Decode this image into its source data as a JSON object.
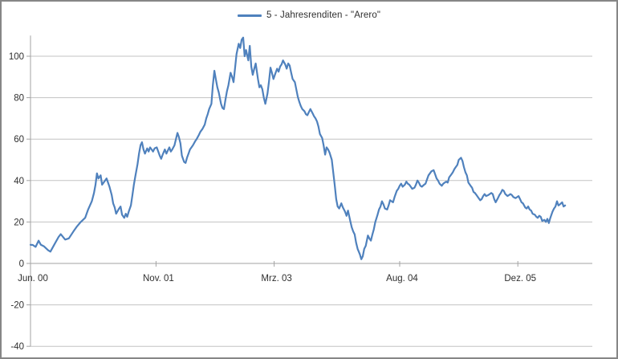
{
  "legend": {
    "label": "5 - Jahresrenditen - \"Arero\""
  },
  "colors": {
    "series_blue": "#4F81BD",
    "gridline": "#c3c3c3",
    "axis_line": "#a3a3a3",
    "tick_text": "#2f2f2f",
    "window_border": "#868686",
    "background": "#ffffff"
  },
  "chart_data": {
    "type": "line",
    "title": "",
    "xlabel": "",
    "ylabel": "",
    "grid": true,
    "legend_position": "top-center",
    "ylim": [
      -40,
      110
    ],
    "y_ticks": [
      100,
      80,
      60,
      40,
      20,
      0,
      -20,
      -40
    ],
    "x_ticks": [
      {
        "label": "Jun. 00",
        "month": 0
      },
      {
        "label": "Nov. 01",
        "month": 17
      },
      {
        "label": "Mrz. 03",
        "month": 33
      },
      {
        "label": "Aug. 04",
        "month": 50
      },
      {
        "label": "Dez. 05",
        "month": 66
      }
    ],
    "x_unit": "months since Jun 2000",
    "series": [
      {
        "name": "5 - Jahresrenditen - \"Arero\"",
        "color": "#4F81BD",
        "points": [
          [
            0,
            9
          ],
          [
            0.3,
            8.9
          ],
          [
            0.7,
            8
          ],
          [
            1.1,
            11
          ],
          [
            1.4,
            9
          ],
          [
            1.8,
            8.3
          ],
          [
            2.4,
            6.3
          ],
          [
            2.7,
            5.7
          ],
          [
            3.3,
            9.6
          ],
          [
            3.8,
            12.8
          ],
          [
            4.1,
            14.1
          ],
          [
            4.7,
            11.5
          ],
          [
            5.2,
            12.1
          ],
          [
            5.8,
            15.4
          ],
          [
            6.3,
            17.9
          ],
          [
            6.8,
            20
          ],
          [
            7.4,
            22
          ],
          [
            7.8,
            26
          ],
          [
            8.3,
            30
          ],
          [
            8.6,
            34
          ],
          [
            8.8,
            38
          ],
          [
            9.0,
            43.5
          ],
          [
            9.2,
            41
          ],
          [
            9.5,
            42.5
          ],
          [
            9.7,
            38
          ],
          [
            10.0,
            39.5
          ],
          [
            10.3,
            41
          ],
          [
            10.7,
            37
          ],
          [
            11.0,
            33
          ],
          [
            11.2,
            29
          ],
          [
            11.4,
            27
          ],
          [
            11.6,
            24
          ],
          [
            12.0,
            26.5
          ],
          [
            12.2,
            27.5
          ],
          [
            12.4,
            23.5
          ],
          [
            12.7,
            22
          ],
          [
            12.9,
            24
          ],
          [
            13.1,
            22.5
          ],
          [
            13.3,
            25
          ],
          [
            13.6,
            28
          ],
          [
            13.8,
            33
          ],
          [
            14.0,
            38
          ],
          [
            14.2,
            42
          ],
          [
            14.5,
            48
          ],
          [
            14.7,
            53
          ],
          [
            14.9,
            57
          ],
          [
            15.1,
            58.5
          ],
          [
            15.3,
            55
          ],
          [
            15.5,
            53
          ],
          [
            15.8,
            55.5
          ],
          [
            16.0,
            54
          ],
          [
            16.2,
            56
          ],
          [
            16.4,
            55
          ],
          [
            16.6,
            54
          ],
          [
            16.8,
            55.5
          ],
          [
            17.1,
            56
          ],
          [
            17.3,
            54
          ],
          [
            17.5,
            52
          ],
          [
            17.7,
            50.5
          ],
          [
            17.9,
            52.5
          ],
          [
            18.2,
            55
          ],
          [
            18.4,
            53
          ],
          [
            18.6,
            54.5
          ],
          [
            18.8,
            56
          ],
          [
            19.0,
            54
          ],
          [
            19.2,
            55
          ],
          [
            19.5,
            57
          ],
          [
            19.7,
            60
          ],
          [
            19.9,
            63
          ],
          [
            20.1,
            61
          ],
          [
            20.3,
            58
          ],
          [
            20.5,
            52
          ],
          [
            20.8,
            49
          ],
          [
            21.0,
            48.5
          ],
          [
            21.2,
            51
          ],
          [
            21.4,
            53
          ],
          [
            21.6,
            55
          ],
          [
            22.0,
            57
          ],
          [
            22.3,
            59
          ],
          [
            22.5,
            60
          ],
          [
            22.8,
            62
          ],
          [
            23.0,
            63.5
          ],
          [
            23.3,
            65
          ],
          [
            23.6,
            67
          ],
          [
            23.8,
            70
          ],
          [
            24.0,
            72
          ],
          [
            24.2,
            74.5
          ],
          [
            24.5,
            77
          ],
          [
            24.7,
            86
          ],
          [
            24.9,
            93
          ],
          [
            25.1,
            89
          ],
          [
            25.3,
            85
          ],
          [
            25.5,
            82.5
          ],
          [
            25.8,
            77
          ],
          [
            26.0,
            75
          ],
          [
            26.2,
            74.5
          ],
          [
            26.4,
            79
          ],
          [
            26.6,
            83
          ],
          [
            26.8,
            86
          ],
          [
            27.1,
            92
          ],
          [
            27.3,
            90
          ],
          [
            27.5,
            87.5
          ],
          [
            27.7,
            94
          ],
          [
            27.9,
            101
          ],
          [
            28.2,
            106
          ],
          [
            28.4,
            104
          ],
          [
            28.6,
            108
          ],
          [
            28.8,
            109
          ],
          [
            29.0,
            100
          ],
          [
            29.2,
            103
          ],
          [
            29.5,
            98
          ],
          [
            29.7,
            105
          ],
          [
            29.9,
            95
          ],
          [
            30.1,
            91
          ],
          [
            30.3,
            94
          ],
          [
            30.5,
            96.5
          ],
          [
            30.8,
            89
          ],
          [
            31.0,
            85
          ],
          [
            31.2,
            86
          ],
          [
            31.4,
            84
          ],
          [
            31.6,
            80
          ],
          [
            31.8,
            77
          ],
          [
            32.1,
            82
          ],
          [
            32.3,
            88
          ],
          [
            32.5,
            94.5
          ],
          [
            32.7,
            92
          ],
          [
            32.9,
            89
          ],
          [
            33.2,
            92
          ],
          [
            33.4,
            94
          ],
          [
            33.6,
            92.5
          ],
          [
            33.8,
            95
          ],
          [
            34.0,
            96
          ],
          [
            34.2,
            98
          ],
          [
            34.5,
            96
          ],
          [
            34.7,
            94
          ],
          [
            34.9,
            96.5
          ],
          [
            35.1,
            95.5
          ],
          [
            35.3,
            92
          ],
          [
            35.5,
            89
          ],
          [
            35.8,
            87.5
          ],
          [
            36.0,
            84
          ],
          [
            36.2,
            80.5
          ],
          [
            36.4,
            78
          ],
          [
            36.6,
            76
          ],
          [
            36.8,
            74.5
          ],
          [
            37.1,
            73.5
          ],
          [
            37.3,
            72
          ],
          [
            37.5,
            71.5
          ],
          [
            37.7,
            73
          ],
          [
            37.9,
            74.5
          ],
          [
            38.2,
            72.5
          ],
          [
            38.4,
            71
          ],
          [
            38.6,
            70
          ],
          [
            38.8,
            68.5
          ],
          [
            39.0,
            66
          ],
          [
            39.2,
            62.5
          ],
          [
            39.5,
            60.5
          ],
          [
            39.7,
            57
          ],
          [
            39.9,
            52.5
          ],
          [
            40.1,
            56
          ],
          [
            40.3,
            55
          ],
          [
            40.5,
            53.5
          ],
          [
            40.8,
            50
          ],
          [
            41.0,
            44
          ],
          [
            41.2,
            38
          ],
          [
            41.4,
            31
          ],
          [
            41.6,
            27.5
          ],
          [
            41.8,
            26.5
          ],
          [
            42.1,
            29
          ],
          [
            42.3,
            27
          ],
          [
            42.6,
            25
          ],
          [
            42.8,
            23
          ],
          [
            43.0,
            25.5
          ],
          [
            43.3,
            20.5
          ],
          [
            43.5,
            17.5
          ],
          [
            43.7,
            15.5
          ],
          [
            43.9,
            14
          ],
          [
            44.1,
            10
          ],
          [
            44.3,
            7
          ],
          [
            44.6,
            4.5
          ],
          [
            44.8,
            2
          ],
          [
            45.0,
            3.5
          ],
          [
            45.2,
            7
          ],
          [
            45.4,
            8.5
          ],
          [
            45.7,
            13.5
          ],
          [
            45.9,
            12
          ],
          [
            46.1,
            11
          ],
          [
            46.3,
            14
          ],
          [
            46.5,
            16.5
          ],
          [
            46.7,
            20
          ],
          [
            47.0,
            23.5
          ],
          [
            47.2,
            26
          ],
          [
            47.4,
            27.5
          ],
          [
            47.6,
            30
          ],
          [
            47.8,
            28.5
          ],
          [
            48.0,
            26.5
          ],
          [
            48.3,
            26
          ],
          [
            48.5,
            28
          ],
          [
            48.7,
            30.5
          ],
          [
            48.9,
            30
          ],
          [
            49.1,
            29.5
          ],
          [
            49.3,
            32
          ],
          [
            49.6,
            35
          ],
          [
            49.8,
            36
          ],
          [
            50.0,
            37.5
          ],
          [
            50.2,
            38.5
          ],
          [
            50.4,
            37
          ],
          [
            50.7,
            38
          ],
          [
            50.9,
            39.5
          ],
          [
            51.1,
            38.5
          ],
          [
            51.3,
            38
          ],
          [
            51.5,
            37
          ],
          [
            51.7,
            36
          ],
          [
            52.0,
            36.5
          ],
          [
            52.2,
            38
          ],
          [
            52.4,
            40
          ],
          [
            52.6,
            39
          ],
          [
            52.8,
            37.5
          ],
          [
            53.0,
            37
          ],
          [
            53.3,
            38
          ],
          [
            53.5,
            38.5
          ],
          [
            53.7,
            40.5
          ],
          [
            53.9,
            42.5
          ],
          [
            54.1,
            43.5
          ],
          [
            54.3,
            44.5
          ],
          [
            54.6,
            45
          ],
          [
            54.8,
            43
          ],
          [
            55.0,
            41
          ],
          [
            55.2,
            40
          ],
          [
            55.4,
            38.5
          ],
          [
            55.7,
            37.5
          ],
          [
            55.9,
            38.5
          ],
          [
            56.1,
            39
          ],
          [
            56.3,
            39.5
          ],
          [
            56.5,
            39
          ],
          [
            56.7,
            41.5
          ],
          [
            57.0,
            43
          ],
          [
            57.2,
            44
          ],
          [
            57.4,
            45.5
          ],
          [
            57.6,
            46.5
          ],
          [
            57.8,
            47.5
          ],
          [
            58.0,
            50
          ],
          [
            58.3,
            51
          ],
          [
            58.5,
            49.5
          ],
          [
            58.7,
            46.5
          ],
          [
            58.9,
            44
          ],
          [
            59.1,
            42.5
          ],
          [
            59.3,
            39
          ],
          [
            59.6,
            37.5
          ],
          [
            59.8,
            36.5
          ],
          [
            60.0,
            34.5
          ],
          [
            60.2,
            34
          ],
          [
            60.4,
            33
          ],
          [
            60.7,
            31.5
          ],
          [
            60.9,
            30.5
          ],
          [
            61.1,
            31
          ],
          [
            61.3,
            32.5
          ],
          [
            61.5,
            33.5
          ],
          [
            61.7,
            32.5
          ],
          [
            62.0,
            33
          ],
          [
            62.2,
            33.5
          ],
          [
            62.4,
            34
          ],
          [
            62.6,
            33.5
          ],
          [
            62.8,
            31
          ],
          [
            63.0,
            29.5
          ],
          [
            63.3,
            31.5
          ],
          [
            63.5,
            33
          ],
          [
            63.7,
            34
          ],
          [
            63.9,
            35.5
          ],
          [
            64.1,
            35
          ],
          [
            64.3,
            33.5
          ],
          [
            64.6,
            32.5
          ],
          [
            64.8,
            33
          ],
          [
            65.0,
            33.5
          ],
          [
            65.2,
            33
          ],
          [
            65.4,
            32
          ],
          [
            65.7,
            31.5
          ],
          [
            65.9,
            32
          ],
          [
            66.1,
            32.5
          ],
          [
            66.3,
            31
          ],
          [
            66.5,
            29.5
          ],
          [
            66.7,
            29
          ],
          [
            67.0,
            27
          ],
          [
            67.2,
            26.5
          ],
          [
            67.4,
            27.5
          ],
          [
            67.6,
            26
          ],
          [
            67.8,
            25.5
          ],
          [
            68.0,
            24
          ],
          [
            68.3,
            23.5
          ],
          [
            68.5,
            22.5
          ],
          [
            68.7,
            22
          ],
          [
            68.9,
            23
          ],
          [
            69.1,
            22.5
          ],
          [
            69.3,
            20.5
          ],
          [
            69.6,
            21
          ],
          [
            69.8,
            20
          ],
          [
            70.0,
            21.5
          ],
          [
            70.2,
            19.5
          ],
          [
            70.4,
            22
          ],
          [
            70.7,
            25
          ],
          [
            70.9,
            26.5
          ],
          [
            71.1,
            27.5
          ],
          [
            71.3,
            30
          ],
          [
            71.5,
            28
          ],
          [
            71.7,
            28.5
          ],
          [
            72.0,
            29.5
          ],
          [
            72.2,
            27.5
          ],
          [
            72.4,
            28
          ]
        ]
      }
    ]
  }
}
